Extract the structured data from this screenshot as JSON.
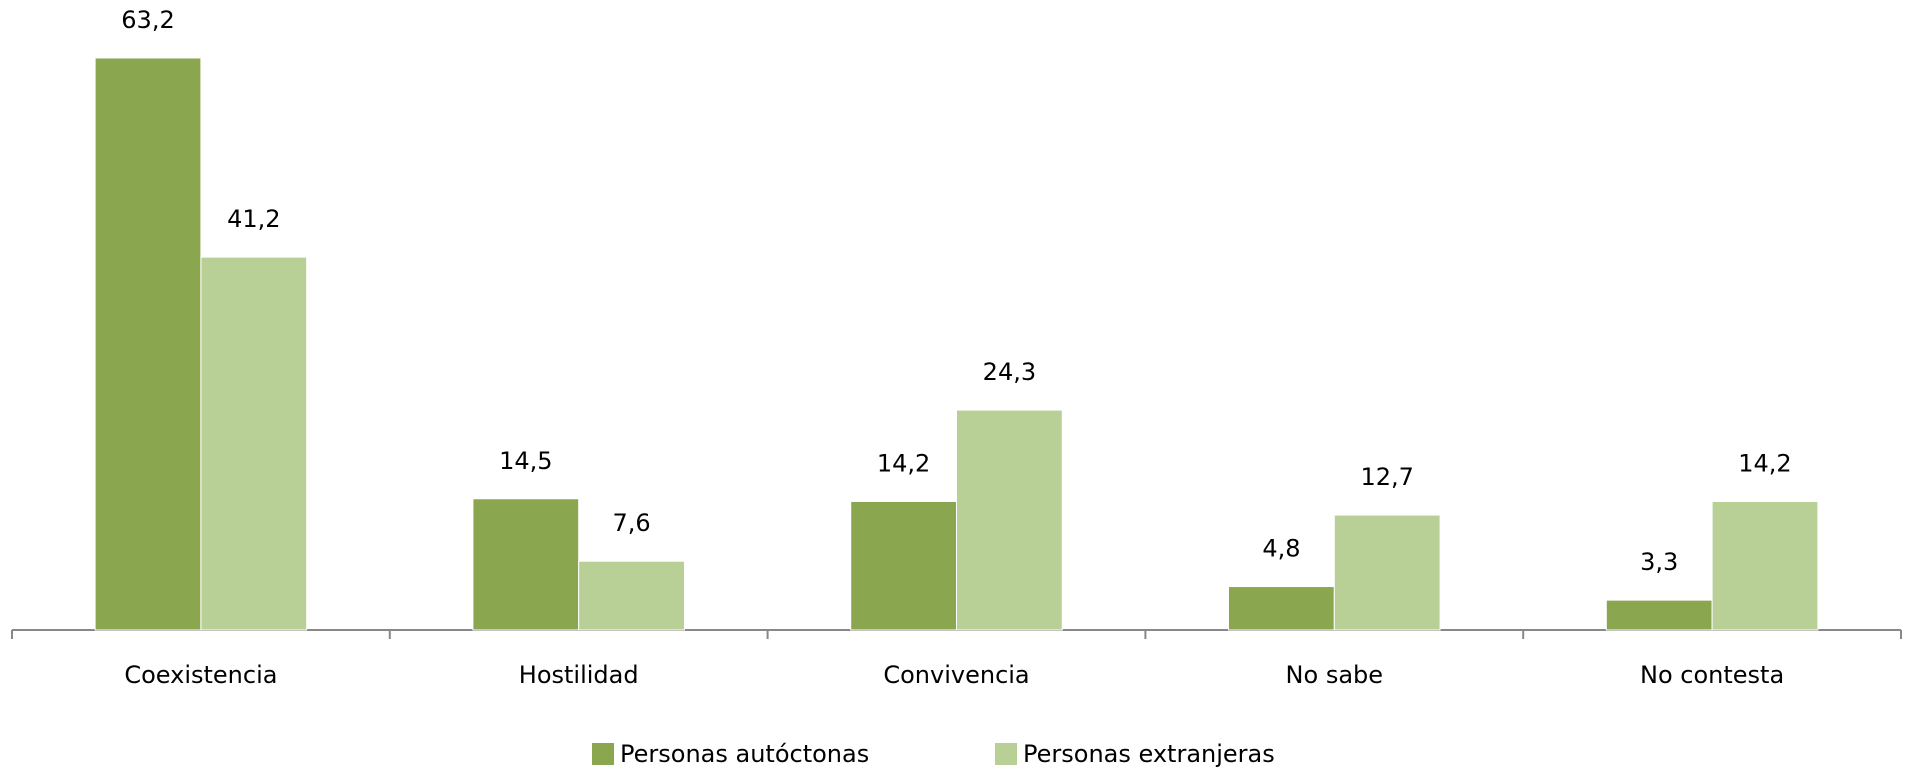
{
  "chart_data": {
    "type": "bar",
    "categories": [
      "Coexistencia",
      "Hostilidad",
      "Convivencia",
      "No sabe",
      "No contesta"
    ],
    "series": [
      {
        "name": "Personas autóctonas",
        "color": "#8aa64f",
        "values": [
          63.2,
          14.5,
          14.2,
          4.8,
          3.3
        ],
        "value_labels": [
          "63,2",
          "14,5",
          "14,2",
          "4,8",
          "3,3"
        ]
      },
      {
        "name": "Personas extranjeras",
        "color": "#b8cf96",
        "values": [
          41.2,
          7.6,
          24.3,
          12.7,
          14.2
        ],
        "value_labels": [
          "41,2",
          "7,6",
          "24,3",
          "12,7",
          "14,2"
        ]
      }
    ],
    "legend": "bottom"
  }
}
